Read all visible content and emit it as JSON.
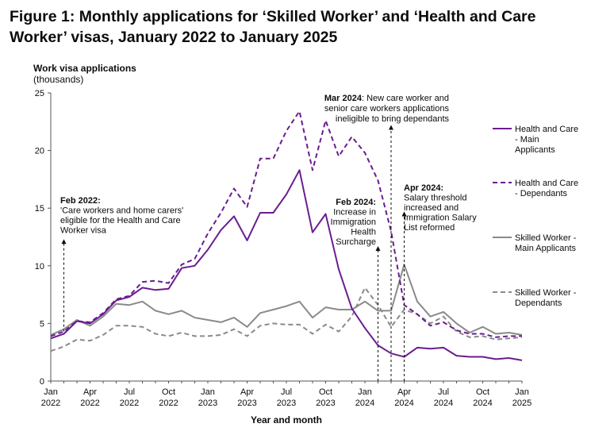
{
  "figure": {
    "title": "Figure 1: Monthly applications for ‘Skilled Worker’ and ‘Health and Care Worker’ visas, January 2022 to January 2025",
    "ylabel_line1": "Work visa applications",
    "ylabel_line2": "(thousands)"
  },
  "chart_data": {
    "type": "line",
    "title": "Figure 1: Monthly applications for ‘Skilled Worker’ and ‘Health and Care Worker’ visas, January 2022 to January 2025",
    "ylabel": "Work visa applications (thousands)",
    "xlabel": "Year and month",
    "ylim": [
      0,
      25
    ],
    "yticks": [
      0,
      5,
      10,
      15,
      20,
      25
    ],
    "grid": false,
    "legend_position": "right",
    "x_tick_labels": [
      {
        "month": "Jan",
        "year": "2022"
      },
      {
        "month": "Apr",
        "year": "2022"
      },
      {
        "month": "Jul",
        "year": "2022"
      },
      {
        "month": "Oct",
        "year": "2022"
      },
      {
        "month": "Jan",
        "year": "2023"
      },
      {
        "month": "Apr",
        "year": "2023"
      },
      {
        "month": "Jul",
        "year": "2023"
      },
      {
        "month": "Oct",
        "year": "2023"
      },
      {
        "month": "Jan",
        "year": "2024"
      },
      {
        "month": "Apr",
        "year": "2024"
      },
      {
        "month": "Jul",
        "year": "2024"
      },
      {
        "month": "Oct",
        "year": "2024"
      },
      {
        "month": "Jan",
        "year": "2025"
      }
    ],
    "x": [
      "2022-01",
      "2022-02",
      "2022-03",
      "2022-04",
      "2022-05",
      "2022-06",
      "2022-07",
      "2022-08",
      "2022-09",
      "2022-10",
      "2022-11",
      "2022-12",
      "2023-01",
      "2023-02",
      "2023-03",
      "2023-04",
      "2023-05",
      "2023-06",
      "2023-07",
      "2023-08",
      "2023-09",
      "2023-10",
      "2023-11",
      "2023-12",
      "2024-01",
      "2024-02",
      "2024-03",
      "2024-04",
      "2024-05",
      "2024-06",
      "2024-07",
      "2024-08",
      "2024-09",
      "2024-10",
      "2024-11",
      "2024-12",
      "2025-01"
    ],
    "series": [
      {
        "name": "Health and Care - Main Applicants",
        "legend_lines": [
          "Health and Care",
          "- Main",
          "Applicants"
        ],
        "color": "#6a1d8f",
        "dash": "solid",
        "values": [
          3.7,
          4.1,
          5.2,
          5.0,
          5.8,
          7.0,
          7.3,
          8.1,
          7.9,
          8.0,
          9.8,
          10.0,
          11.4,
          13.1,
          14.3,
          12.2,
          14.6,
          14.6,
          16.2,
          18.3,
          12.9,
          14.5,
          9.7,
          6.3,
          4.6,
          3.1,
          2.4,
          2.1,
          2.9,
          2.8,
          2.9,
          2.2,
          2.1,
          2.1,
          1.9,
          2.0,
          1.8
        ]
      },
      {
        "name": "Health and Care - Dependants",
        "legend_lines": [
          "Health and Care",
          "- Dependants"
        ],
        "color": "#6a1d8f",
        "dash": "dashed",
        "values": [
          3.9,
          4.3,
          5.2,
          5.1,
          5.9,
          7.1,
          7.4,
          8.6,
          8.7,
          8.5,
          10.1,
          10.6,
          12.8,
          14.6,
          16.7,
          15.1,
          19.3,
          19.3,
          21.7,
          23.4,
          18.3,
          22.6,
          19.5,
          21.2,
          19.8,
          17.4,
          13.0,
          6.6,
          5.8,
          4.8,
          5.1,
          4.4,
          4.1,
          4.1,
          3.8,
          3.9,
          3.9
        ]
      },
      {
        "name": "Skilled Worker - Main Applicants",
        "legend_lines": [
          "Skilled Worker -",
          "Main Applicants"
        ],
        "color": "#8a8a8a",
        "dash": "solid",
        "values": [
          4.0,
          4.5,
          5.3,
          4.8,
          5.6,
          6.7,
          6.6,
          6.9,
          6.1,
          5.8,
          6.1,
          5.5,
          5.3,
          5.1,
          5.5,
          4.7,
          5.9,
          6.2,
          6.5,
          6.9,
          5.5,
          6.4,
          6.2,
          6.2,
          6.9,
          6.1,
          6.1,
          10.1,
          6.9,
          5.6,
          6.0,
          5.0,
          4.2,
          4.7,
          4.1,
          4.2,
          4.0
        ]
      },
      {
        "name": "Skilled Worker - Dependants",
        "legend_lines": [
          "Skilled Worker -",
          "Dependants"
        ],
        "color": "#8a8a8a",
        "dash": "dashed",
        "values": [
          2.6,
          3.0,
          3.6,
          3.5,
          4.0,
          4.8,
          4.8,
          4.7,
          4.1,
          3.9,
          4.2,
          3.9,
          3.9,
          4.0,
          4.5,
          3.9,
          4.8,
          5.0,
          4.9,
          4.9,
          4.1,
          4.9,
          4.3,
          5.6,
          8.1,
          6.6,
          4.7,
          6.2,
          5.8,
          5.0,
          5.6,
          4.3,
          3.8,
          3.9,
          3.6,
          3.7,
          3.8
        ]
      }
    ],
    "annotations": [
      {
        "id": "feb-2022",
        "x_index": 1,
        "arrow_top_value": 12.1,
        "arrow_bottom_value": 4.3,
        "direction": "up",
        "bold": "Feb 2022:",
        "lines": [
          "'Care workers and home carers'",
          "eligible for the Health and Care",
          "Worker visa"
        ]
      },
      {
        "id": "mar-2024",
        "x_index": 26,
        "arrow_top_value": 22.0,
        "arrow_bottom_value": 0,
        "direction": "up",
        "bold": "Mar 2024",
        "rest": ": New care worker and",
        "lines": [
          "senior care workers applications",
          "ineligible to bring dependants"
        ]
      },
      {
        "id": "feb-2024",
        "x_index": 25,
        "arrow_top_value": 11.5,
        "arrow_bottom_value": 0,
        "direction": "up",
        "bold": "Feb 2024:",
        "lines": [
          "Increase in",
          "Immigration",
          "Health",
          "Surcharge"
        ]
      },
      {
        "id": "apr-2024",
        "x_index": 27,
        "arrow_top_value": 14.5,
        "arrow_bottom_value": 0,
        "direction": "up",
        "bold": "Apr 2024:",
        "lines": [
          "Salary threshold",
          "increased and",
          "Immigration Salary",
          "List reformed"
        ]
      }
    ]
  }
}
